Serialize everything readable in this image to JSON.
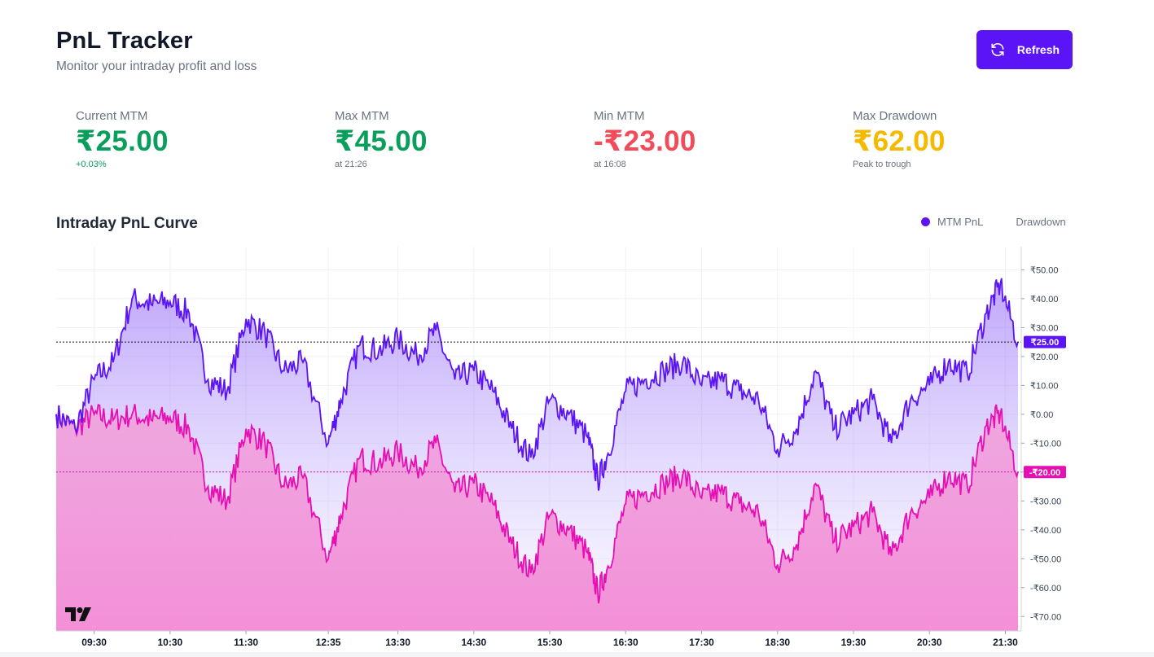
{
  "header": {
    "title": "PnL Tracker",
    "subtitle": "Monitor your intraday profit and loss",
    "refresh_label": "Refresh"
  },
  "stats": [
    {
      "label": "Current MTM",
      "value": "₹25.00",
      "sub": "+0.03%",
      "tone": "green"
    },
    {
      "label": "Max MTM",
      "value": "₹45.00",
      "sub": "at 21:26",
      "tone": "green"
    },
    {
      "label": "Min MTM",
      "value": "-₹23.00",
      "sub": "at 16:08",
      "tone": "red"
    },
    {
      "label": "Max Drawdown",
      "value": "₹62.00",
      "sub": "Peak to trough",
      "tone": "yellow"
    }
  ],
  "chart_section": {
    "title": "Intraday PnL Curve",
    "legend": [
      "MTM PnL",
      "Drawdown"
    ]
  },
  "colors": {
    "accent": "#5a14f5",
    "drawdown": "#e60fb4",
    "green": "#0a9e5c",
    "red": "#f24c5a",
    "yellow": "#f5b900"
  },
  "chart_data": {
    "type": "area",
    "ylim": [
      -75,
      58
    ],
    "y_ticks": [
      50,
      40,
      30,
      20,
      10,
      0,
      -10,
      -20,
      -30,
      -40,
      -50,
      -60,
      -70
    ],
    "y_tick_labels": [
      "₹50.00",
      "₹40.00",
      "₹30.00",
      "₹20.00",
      "₹10.00",
      "₹0.00",
      "-₹10.00",
      "-₹20.00",
      "-₹30.00",
      "-₹40.00",
      "-₹50.00",
      "-₹60.00",
      "-₹70.00"
    ],
    "x_tick_labels": [
      "09:30",
      "10:30",
      "11:30",
      "12:35",
      "13:30",
      "14:30",
      "15:30",
      "16:30",
      "17:30",
      "18:30",
      "19:30",
      "20:30",
      "21:30"
    ],
    "last_values": {
      "mtm": 25,
      "drawdown": -20
    },
    "last_value_labels": {
      "mtm": "₹25.00",
      "drawdown": "-₹20.00"
    },
    "series": [
      {
        "name": "MTM PnL",
        "x": [
          "09:00",
          "09:15",
          "09:30",
          "09:45",
          "10:00",
          "10:15",
          "10:30",
          "10:45",
          "11:00",
          "11:15",
          "11:30",
          "11:45",
          "12:00",
          "12:15",
          "12:35",
          "12:45",
          "13:00",
          "13:15",
          "13:30",
          "13:45",
          "14:00",
          "14:15",
          "14:30",
          "14:45",
          "15:00",
          "15:15",
          "15:30",
          "15:45",
          "16:00",
          "16:08",
          "16:15",
          "16:30",
          "16:45",
          "17:00",
          "17:15",
          "17:30",
          "17:45",
          "18:00",
          "18:15",
          "18:30",
          "18:45",
          "19:00",
          "19:15",
          "19:30",
          "19:45",
          "20:00",
          "20:15",
          "20:30",
          "20:45",
          "21:00",
          "21:15",
          "21:26",
          "21:40"
        ],
        "values": [
          0,
          -5,
          12,
          18,
          40,
          38,
          39,
          35,
          12,
          8,
          33,
          28,
          15,
          18,
          -10,
          5,
          24,
          22,
          26,
          20,
          29,
          12,
          15,
          8,
          -5,
          -15,
          5,
          0,
          -8,
          -23,
          -15,
          8,
          12,
          15,
          18,
          10,
          12,
          8,
          5,
          -12,
          -5,
          15,
          -5,
          0,
          5,
          -10,
          5,
          10,
          18,
          14,
          35,
          45,
          25
        ]
      },
      {
        "name": "Drawdown",
        "x": [
          "09:00",
          "09:15",
          "09:30",
          "09:45",
          "10:00",
          "10:15",
          "10:30",
          "10:45",
          "11:00",
          "11:15",
          "11:30",
          "11:45",
          "12:00",
          "12:15",
          "12:35",
          "12:45",
          "13:00",
          "13:15",
          "13:30",
          "13:45",
          "14:00",
          "14:15",
          "14:30",
          "14:45",
          "15:00",
          "15:15",
          "15:30",
          "15:45",
          "16:00",
          "16:08",
          "16:15",
          "16:30",
          "16:45",
          "17:00",
          "17:15",
          "17:30",
          "17:45",
          "18:00",
          "18:15",
          "18:30",
          "18:45",
          "19:00",
          "19:15",
          "19:30",
          "19:45",
          "20:00",
          "20:15",
          "20:30",
          "20:45",
          "21:00",
          "21:15",
          "21:26",
          "21:40"
        ],
        "values": [
          0,
          -5,
          0,
          -2,
          0,
          -2,
          -1,
          -5,
          -25,
          -30,
          -5,
          -10,
          -25,
          -22,
          -50,
          -35,
          -15,
          -17,
          -13,
          -19,
          -10,
          -27,
          -24,
          -31,
          -45,
          -55,
          -35,
          -40,
          -48,
          -62,
          -54,
          -31,
          -27,
          -24,
          -21,
          -29,
          -27,
          -31,
          -34,
          -52,
          -45,
          -24,
          -44,
          -39,
          -34,
          -49,
          -34,
          -29,
          -21,
          -25,
          -4,
          0,
          -20
        ]
      }
    ]
  }
}
